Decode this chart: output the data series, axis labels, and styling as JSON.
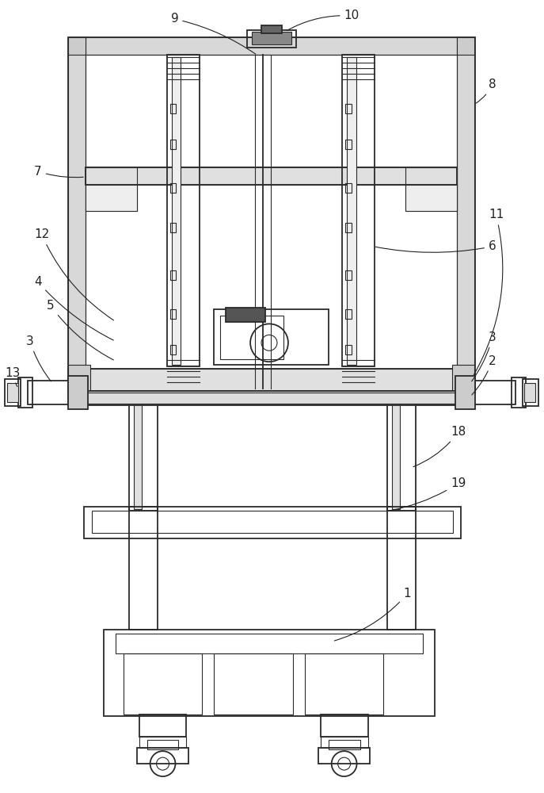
{
  "bg_color": "#ffffff",
  "lc": "#2a2a2a",
  "fig_width": 6.87,
  "fig_height": 10.0,
  "dpi": 100
}
